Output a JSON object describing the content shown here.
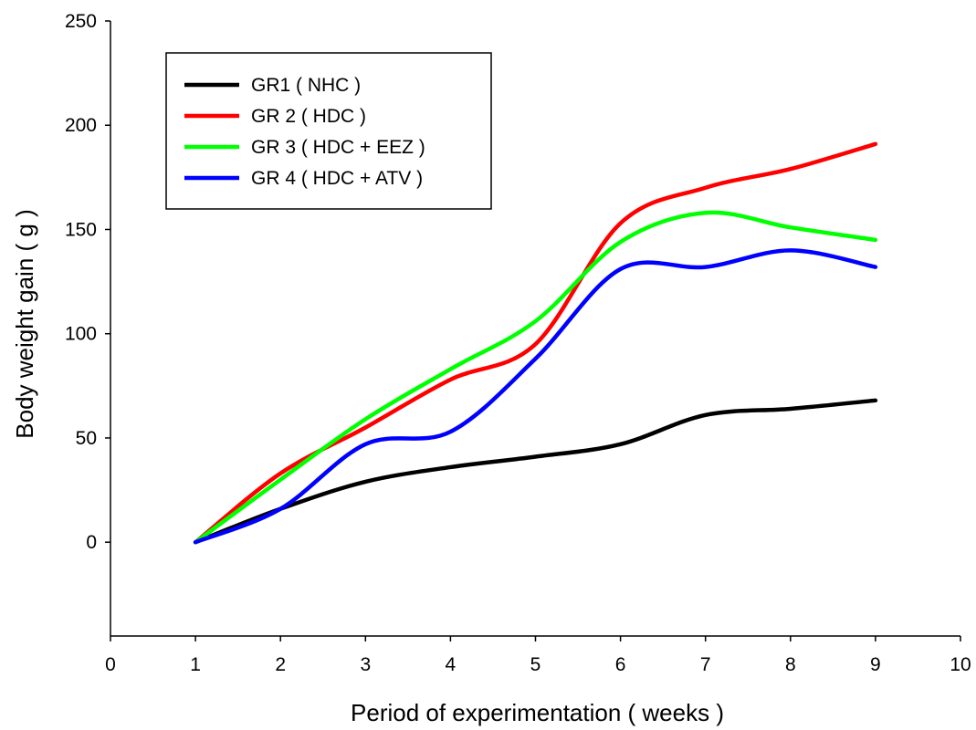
{
  "chart_data": {
    "type": "line",
    "title": "",
    "xlabel": "Period of experimentation ( weeks )",
    "ylabel": "Body weight gain ( g )",
    "xlim": [
      0,
      10
    ],
    "ylim": [
      -45,
      250
    ],
    "xticks": [
      0,
      1,
      2,
      3,
      4,
      5,
      6,
      7,
      8,
      9,
      10
    ],
    "yticks": [
      0,
      50,
      100,
      150,
      200,
      250
    ],
    "grid": false,
    "legend_position": "top-left",
    "smooth": true,
    "x": [
      1,
      2,
      3,
      4,
      5,
      6,
      7,
      8,
      9
    ],
    "series": [
      {
        "name": "GR1 ( NHC )",
        "color": "#000000",
        "values": [
          0,
          16,
          29,
          36,
          41,
          47,
          61,
          64,
          68
        ]
      },
      {
        "name": "GR 2 ( HDC )",
        "color": "#ff0000",
        "values": [
          0,
          33,
          55,
          78,
          95,
          153,
          170,
          179,
          191
        ]
      },
      {
        "name": "GR 3 ( HDC + EEZ )",
        "color": "#00ff00",
        "values": [
          0,
          30,
          59,
          83,
          106,
          144,
          158,
          151,
          145
        ]
      },
      {
        "name": "GR 4 ( HDC + ATV )",
        "color": "#0000ff",
        "values": [
          0,
          16,
          47,
          53,
          88,
          131,
          132,
          140,
          132
        ]
      }
    ]
  }
}
